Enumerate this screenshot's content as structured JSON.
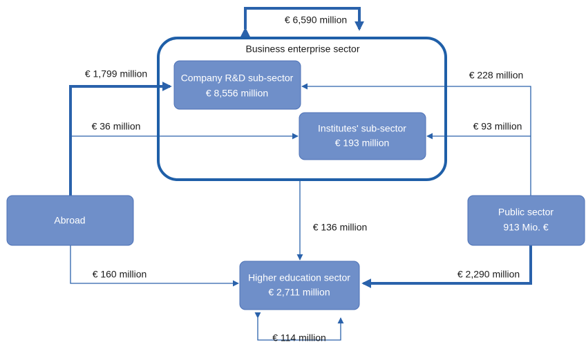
{
  "sector": {
    "label": "Business enterprise sector"
  },
  "nodes": [
    {
      "lines": [
        "Company R&D sub-sector",
        "€ 8,556 million"
      ]
    },
    {
      "lines": [
        "Institutes' sub-sector",
        "€ 193 million"
      ]
    },
    {
      "lines": [
        "Abroad"
      ]
    },
    {
      "lines": [
        "Public sector",
        "913 Mio. €"
      ]
    },
    {
      "lines": [
        "Higher education sector",
        "€ 2,711 million"
      ]
    }
  ],
  "flows": [
    {
      "label": "€ 6,590 million"
    },
    {
      "label": "€ 1,799 million"
    },
    {
      "label": "€ 36 million"
    },
    {
      "label": "€ 160 million"
    },
    {
      "label": "€ 228 million"
    },
    {
      "label": "€ 93 million"
    },
    {
      "label": "€ 2,290 million"
    },
    {
      "label": "€ 136 million"
    },
    {
      "label": "€ 114 million"
    }
  ]
}
